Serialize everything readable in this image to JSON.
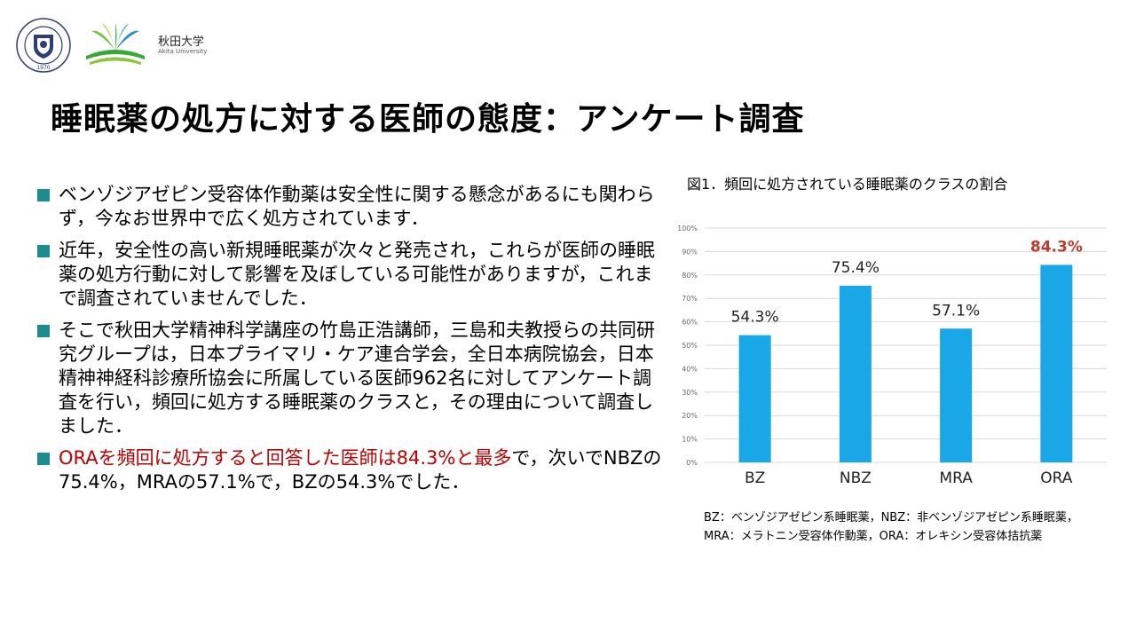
{
  "header": {
    "seal_year": "1970",
    "university_jp": "秋田大学",
    "university_en": "Akita University"
  },
  "title": "睡眠薬の処方に対する医師の態度：アンケート調査",
  "bullets": [
    "ベンゾジアゼピン受容体作動薬は安全性に関する懸念があるにも関わらず，今なお世界中で広く処方されています．",
    "近年，安全性の高い新規睡眠薬が次々と発売され，これらが医師の睡眠薬の処方行動に対して影響を及ぼしている可能性がありますが，これまで調査されていませんでした．",
    "そこで秋田大学精神科学講座の竹島正浩講師，三島和夫教授らの共同研究グループは，日本プライマリ・ケア連合学会，全日本病院協会，日本精神神経科診療所協会に所属している医師962名に対してアンケート調査を行い，頻回に処方する睡眠薬のクラスと，その理由について調査しました．"
  ],
  "bullet_last": {
    "highlight": "ORAを頻回に処方すると回答した医師は84.3%と最多",
    "rest": "で，次いでNBZの75.4%，MRAの57.1%で，BZの54.3%でした．"
  },
  "chart_data": {
    "type": "bar",
    "title": "図1．頻回に処方されている睡眠薬のクラスの割合",
    "categories": [
      "BZ",
      "NBZ",
      "MRA",
      "ORA"
    ],
    "values": [
      54.3,
      75.4,
      57.1,
      84.3
    ],
    "data_labels": [
      "54.3%",
      "75.4%",
      "57.1%",
      "84.3%"
    ],
    "yticks": [
      "0%",
      "10%",
      "20%",
      "30%",
      "40%",
      "50%",
      "60%",
      "70%",
      "80%",
      "90%",
      "100%"
    ],
    "ylim": [
      0,
      100
    ],
    "grid": true,
    "bar_color": "#1aa7e8",
    "highlight_label_color": "#c0392b",
    "highlight_index": 3
  },
  "footnote": {
    "line1": "BZ：ベンゾジアゼピン系睡眠薬，NBZ：非ベンゾジアゼピン系睡眠薬，",
    "line2": "MRA：メラトニン受容体作動薬，ORA：オレキシン受容体拮抗薬"
  }
}
